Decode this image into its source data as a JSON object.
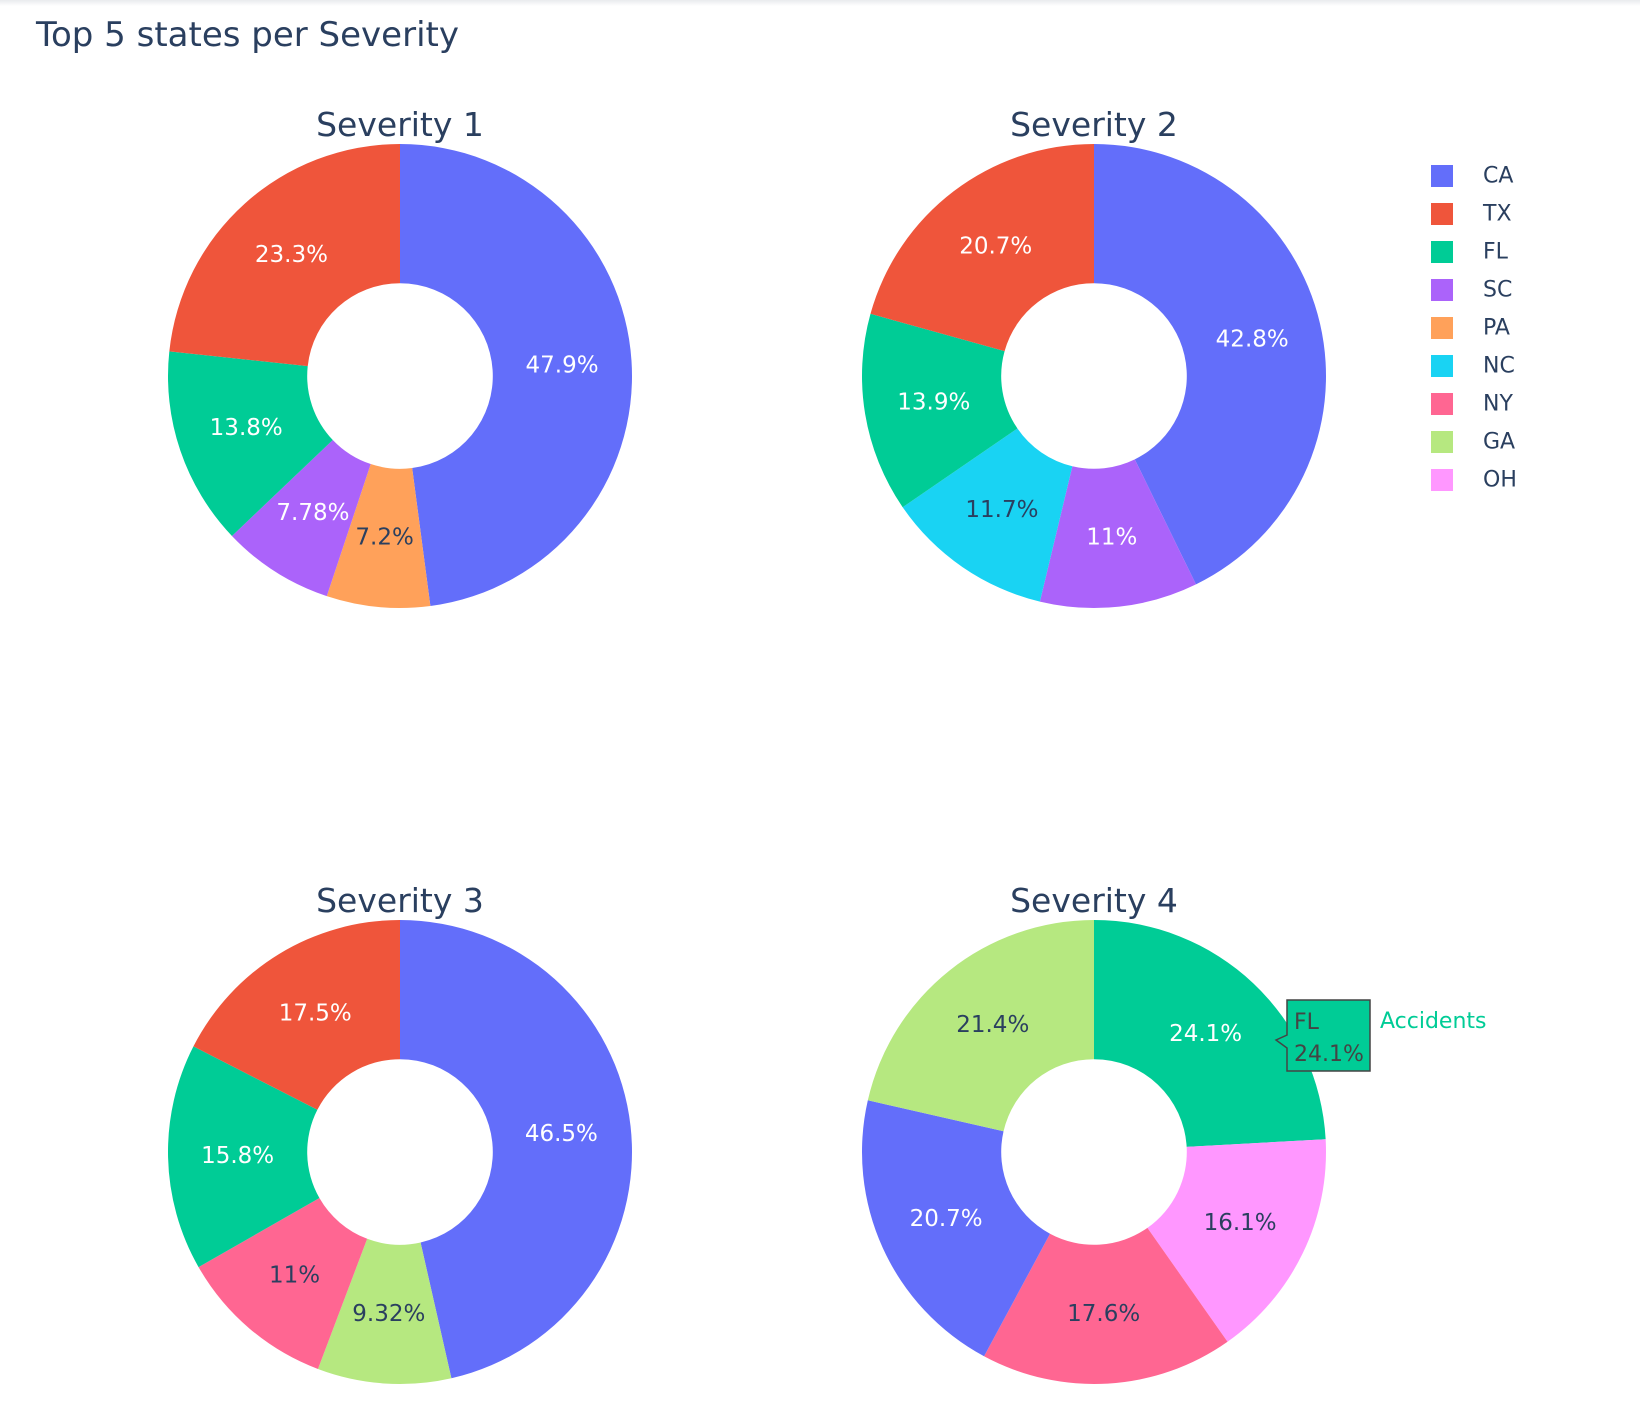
{
  "title": "Top 5 states per Severity",
  "colors": {
    "CA": "#636efa",
    "TX": "#ef553b",
    "FL": "#00cc96",
    "SC": "#ab63fa",
    "PA": "#ffa15a",
    "NC": "#19d3f3",
    "NY": "#ff6692",
    "GA": "#b6e880",
    "OH": "#ff97ff"
  },
  "legend": {
    "position": "top-right",
    "entries": [
      "CA",
      "TX",
      "FL",
      "SC",
      "PA",
      "NC",
      "NY",
      "GA",
      "OH"
    ]
  },
  "chart_data": [
    {
      "type": "pie",
      "hole": 0.4,
      "title": "Severity 1",
      "labels": [
        "CA",
        "PA",
        "SC",
        "FL",
        "TX"
      ],
      "values": [
        47.9,
        7.2,
        7.78,
        13.8,
        23.3
      ],
      "text": [
        "47.9%",
        "7.2%",
        "7.78%",
        "13.8%",
        "23.3%"
      ]
    },
    {
      "type": "pie",
      "hole": 0.4,
      "title": "Severity 2",
      "labels": [
        "CA",
        "SC",
        "NC",
        "FL",
        "TX"
      ],
      "values": [
        42.8,
        11,
        11.7,
        13.9,
        20.7
      ],
      "text": [
        "42.8%",
        "11%",
        "11.7%",
        "13.9%",
        "20.7%"
      ]
    },
    {
      "type": "pie",
      "hole": 0.4,
      "title": "Severity 3",
      "labels": [
        "CA",
        "GA",
        "NY",
        "FL",
        "TX"
      ],
      "values": [
        46.5,
        9.32,
        11,
        15.8,
        17.5
      ],
      "text": [
        "46.5%",
        "9.32%",
        "11%",
        "15.8%",
        "17.5%"
      ]
    },
    {
      "type": "pie",
      "hole": 0.4,
      "title": "Severity 4",
      "labels": [
        "FL",
        "OH",
        "NY",
        "CA",
        "GA"
      ],
      "values": [
        24.1,
        16.1,
        17.6,
        20.7,
        21.4
      ],
      "text": [
        "24.1%",
        "16.1%",
        "17.6%",
        "20.7%",
        "21.4%"
      ]
    }
  ],
  "hover": {
    "label": "FL",
    "value": "24.1%",
    "trace_name": "Accidents"
  }
}
